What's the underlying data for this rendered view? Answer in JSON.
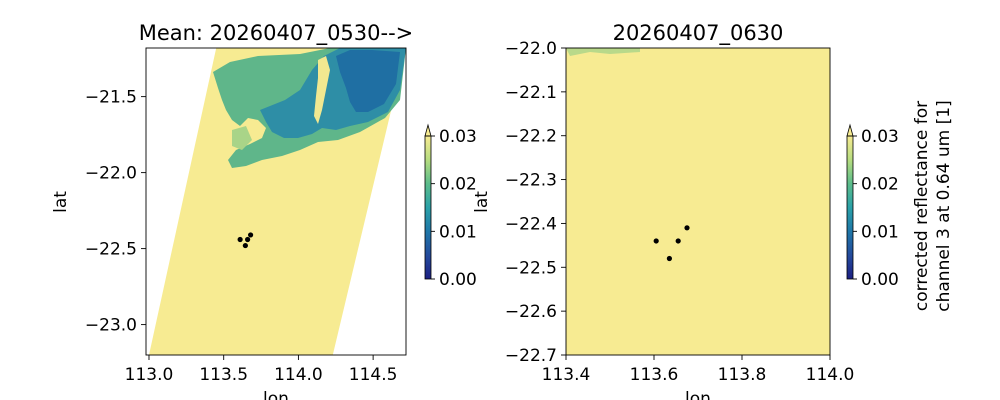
{
  "chart_data": [
    {
      "type": "heatmap",
      "title": "Mean: 20260407_0530-->",
      "xlabel": "lon",
      "ylabel": "lat",
      "xlim": [
        112.98,
        114.72
      ],
      "ylim": [
        -23.2,
        -21.18
      ],
      "xticks": [
        113.0,
        113.5,
        114.0,
        114.5
      ],
      "xtick_labels": [
        "113.0",
        "113.5",
        "114.0",
        "114.5"
      ],
      "yticks": [
        -21.5,
        -22.0,
        -22.5,
        -23.0
      ],
      "ytick_labels": [
        "−21.5",
        "−22.0",
        "−22.5",
        "−23.0"
      ],
      "swath_polygon_lonlat": [
        [
          113.0,
          -23.2
        ],
        [
          114.23,
          -23.2
        ],
        [
          114.72,
          -21.18
        ],
        [
          113.45,
          -21.18
        ]
      ],
      "cloud_region_note": "low reflectance (~0.005-0.015) cloud/water area in upper part of swath",
      "points": [
        {
          "x": 113.61,
          "y": -22.44
        },
        {
          "x": 113.645,
          "y": -22.48
        },
        {
          "x": 113.66,
          "y": -22.44
        },
        {
          "x": 113.68,
          "y": -22.41
        }
      ],
      "colorbar": {
        "vmin": 0.0,
        "vmax": 0.03,
        "ticks": [
          "0.00",
          "0.01",
          "0.02",
          "0.03"
        ],
        "colormap": "YlGnBu",
        "extend": "max"
      }
    },
    {
      "type": "heatmap",
      "title": "20260407_0630",
      "xlabel": "lon",
      "ylabel": "lat",
      "xlim": [
        113.4,
        114.0
      ],
      "ylim": [
        -22.7,
        -22.0
      ],
      "xticks": [
        113.4,
        113.6,
        113.8,
        114.0
      ],
      "xtick_labels": [
        "113.4",
        "113.6",
        "113.8",
        "114.0"
      ],
      "yticks": [
        -22.0,
        -22.1,
        -22.2,
        -22.3,
        -22.4,
        -22.5,
        -22.6,
        -22.7
      ],
      "ytick_labels": [
        "−22.0",
        "−22.1",
        "−22.2",
        "−22.3",
        "−22.4",
        "−22.5",
        "−22.6",
        "−22.7"
      ],
      "points": [
        {
          "x": 113.605,
          "y": -22.44
        },
        {
          "x": 113.635,
          "y": -22.48
        },
        {
          "x": 113.655,
          "y": -22.44
        },
        {
          "x": 113.675,
          "y": -22.41
        }
      ],
      "colorbar": {
        "vmin": 0.0,
        "vmax": 0.03,
        "ticks": [
          "0.00",
          "0.01",
          "0.02",
          "0.03"
        ],
        "colormap": "YlGnBu",
        "extend": "max",
        "label_lines": [
          "corrected reflectance for",
          "channel 3 at 0.64 um [1]"
        ]
      }
    }
  ],
  "colors": {
    "high": "#f7eb92",
    "mid": "#5bb48a",
    "low": "#1e6aa0",
    "darkest": "#1c2180",
    "point": "#000000"
  }
}
